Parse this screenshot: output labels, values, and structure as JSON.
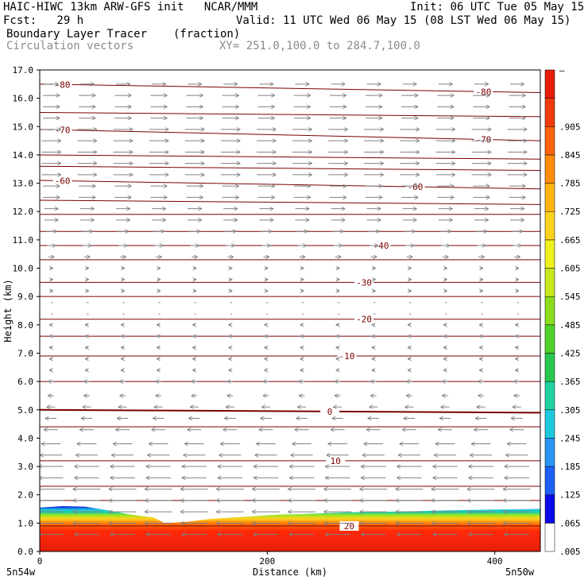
{
  "header": {
    "title_left": "HAIC-HIWC 13km ARW-GFS init   NCAR/MMM",
    "init": "Init: 06 UTC Tue 05 May 15",
    "fcst": "Fcst:   29 h",
    "valid": "Valid: 11 UTC Wed 06 May 15 (08 LST Wed 06 May 15)",
    "field": "Boundary Layer Tracer",
    "units": "(fraction)",
    "vectors": "Circulation vectors",
    "xy": "XY= 251.0,100.0 to 284.7,100.0"
  },
  "chart_data": {
    "type": "heatmap",
    "title": "Boundary Layer Tracer",
    "xlabel": "Distance (km)",
    "ylabel": "Height (km)",
    "xlim": [
      0,
      440
    ],
    "ylim": [
      0,
      17
    ],
    "x_ticks": [
      "0",
      "200",
      "400"
    ],
    "y_ticks": [
      "0.0",
      "1.0",
      "2.0",
      "3.0",
      "4.0",
      "5.0",
      "6.0",
      "7.0",
      "8.0",
      "9.0",
      "10.0",
      "11.0",
      "12.0",
      "13.0",
      "14.0",
      "15.0",
      "16.0",
      "17.0"
    ],
    "x_endpoint_labels": [
      "5n54w",
      "5n50w"
    ],
    "colorbar": {
      "levels": [
        ".005",
        ".065",
        ".125",
        ".185",
        ".245",
        ".305",
        ".365",
        ".425",
        ".485",
        ".545",
        ".605",
        ".665",
        ".725",
        ".785",
        ".845",
        ".905",
        "–"
      ],
      "colors": [
        "#ffffff",
        "#0a0ae6",
        "#1e5ff5",
        "#2896f5",
        "#1ec8dc",
        "#1ed2a0",
        "#28c850",
        "#50d228",
        "#8cdc1e",
        "#c8e61e",
        "#f0f01e",
        "#fad21e",
        "#ffb414",
        "#ff8c0a",
        "#ff640a",
        "#f03c0a",
        "#e61e0a"
      ]
    },
    "tracer_top_km": [
      1.55,
      1.6,
      1.58,
      1.45,
      1.3,
      1.2,
      1.0,
      1.05,
      1.15,
      1.2,
      1.25,
      1.3,
      1.32,
      1.35,
      1.38,
      1.4,
      1.42,
      1.45,
      1.48,
      1.5
    ],
    "tracer_x_km": [
      0,
      20,
      40,
      60,
      80,
      100,
      110,
      130,
      150,
      170,
      190,
      210,
      230,
      250,
      270,
      300,
      330,
      360,
      400,
      440
    ],
    "temperature_contours": [
      {
        "label": "-80",
        "y_left": 16.5,
        "y_right": 16.2,
        "label_x": [
          20,
          390
        ]
      },
      {
        "label": "-70",
        "y_left": 14.9,
        "y_right": 14.5,
        "label_x": [
          20,
          390
        ]
      },
      {
        "label": "-60",
        "y_left": 13.1,
        "y_right": 12.8,
        "label_x": [
          20,
          330
        ]
      },
      {
        "label": "-40",
        "y_left": 10.8,
        "y_right": 10.8,
        "label_x": [
          300
        ]
      },
      {
        "label": "-30",
        "y_left": 9.5,
        "y_right": 9.5,
        "label_x": [
          285
        ]
      },
      {
        "label": "-20",
        "y_left": 8.2,
        "y_right": 8.2,
        "label_x": [
          285
        ]
      },
      {
        "label": "-10",
        "y_left": 6.9,
        "y_right": 6.9,
        "label_x": [
          270
        ]
      },
      {
        "label": "0",
        "y_left": 5.0,
        "y_right": 4.9,
        "label_x": [
          255
        ]
      },
      {
        "label": "10",
        "y_left": 3.2,
        "y_right": 3.2,
        "label_x": [
          260
        ]
      },
      {
        "label": "20",
        "y_left": 0.9,
        "y_right": 0.9,
        "label_x": [
          272
        ]
      }
    ],
    "extra_contour_heights_km": [
      15.5,
      14.0,
      13.6,
      12.4,
      11.9,
      11.3,
      10.3,
      9.0,
      7.6,
      6.0,
      4.4,
      2.3,
      1.8
    ],
    "wind_vectors": {
      "description_levels_km": [
        0.6,
        1.0,
        1.4,
        1.8,
        2.2,
        2.6,
        3.0,
        3.4,
        3.8,
        4.3,
        4.7,
        5.1,
        5.5,
        6.0,
        6.4,
        6.8,
        7.2,
        7.6,
        8.0,
        8.4,
        8.8,
        9.2,
        9.6,
        10.0,
        10.4,
        10.8,
        11.3,
        11.7,
        12.1,
        12.5,
        12.9,
        13.3,
        13.7,
        14.1,
        14.5,
        14.9,
        15.3,
        15.7,
        16.1,
        16.5
      ],
      "u_ms": [
        -9,
        -10,
        -10,
        -10,
        -10,
        -9,
        -9,
        -8,
        -7,
        -5,
        -4,
        -3,
        -2,
        -2,
        -1,
        -1,
        -1,
        -1,
        -1,
        0,
        0,
        1,
        1,
        1,
        2,
        3,
        4,
        5,
        5,
        6,
        6,
        7,
        7,
        7,
        7,
        7,
        6,
        6,
        6,
        5
      ]
    }
  }
}
